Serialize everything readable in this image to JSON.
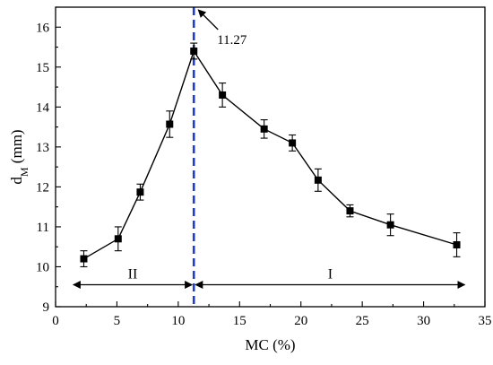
{
  "chart_data": {
    "type": "line",
    "title": "",
    "xlabel": "MC (%)",
    "ylabel_main": "d",
    "ylabel_sub": "M",
    "ylabel_unit": " (mm)",
    "xlim": [
      0,
      35
    ],
    "ylim": [
      9,
      16.5
    ],
    "xticks": [
      0,
      5,
      10,
      15,
      20,
      25,
      30,
      35
    ],
    "yticks": [
      9,
      10,
      11,
      12,
      13,
      14,
      15,
      16
    ],
    "grid": false,
    "series": [
      {
        "marker": "square",
        "color": "#000000",
        "x": [
          2.3,
          5.1,
          6.9,
          9.3,
          11.27,
          13.6,
          17.0,
          19.3,
          21.4,
          24.0,
          27.3,
          32.7
        ],
        "y": [
          10.2,
          10.7,
          11.87,
          13.57,
          15.4,
          14.3,
          13.45,
          13.1,
          12.17,
          11.4,
          11.05,
          10.55
        ],
        "err": [
          0.2,
          0.3,
          0.2,
          0.33,
          0.2,
          0.3,
          0.23,
          0.2,
          0.28,
          0.15,
          0.27,
          0.3
        ]
      }
    ],
    "reference_line": {
      "x": 11.27,
      "color": "#1f3fbf",
      "label": "11.27"
    },
    "regions": [
      {
        "label": "II",
        "x_from": 1.3,
        "x_to": 11.27,
        "y": 9.55
      },
      {
        "label": "I",
        "x_from": 11.27,
        "x_to": 33.5,
        "y": 9.55
      }
    ]
  }
}
